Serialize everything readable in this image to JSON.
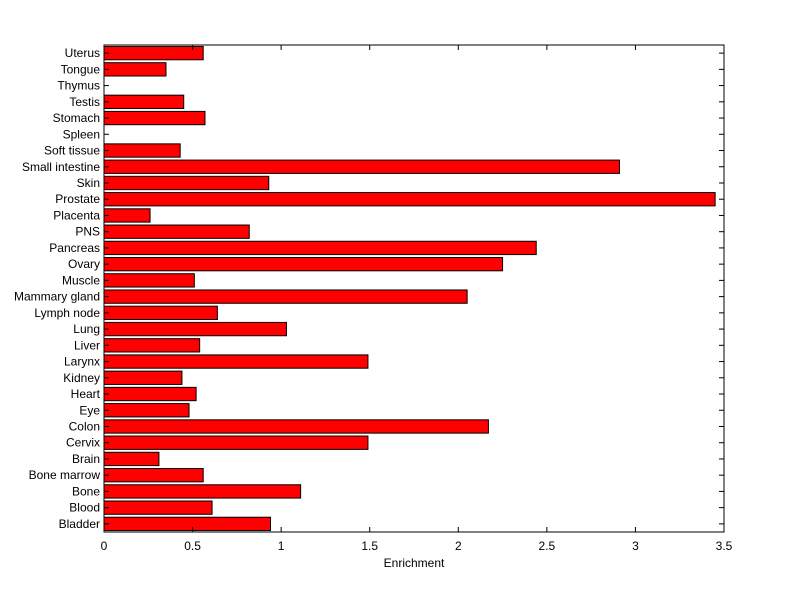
{
  "chart_data": {
    "type": "bar",
    "orientation": "horizontal",
    "xlabel": "Enrichment",
    "ylabel": "",
    "title": "",
    "xlim": [
      0,
      3.5
    ],
    "xticks": [
      0,
      0.5,
      1,
      1.5,
      2,
      2.5,
      3,
      3.5
    ],
    "xtick_labels": [
      "0",
      "0.5",
      "1",
      "1.5",
      "2",
      "2.5",
      "3",
      "3.5"
    ],
    "grid": false,
    "bar_color": "#ff0000",
    "bar_edge_color": "#000000",
    "categories": [
      "Bladder",
      "Blood",
      "Bone",
      "Bone marrow",
      "Brain",
      "Cervix",
      "Colon",
      "Eye",
      "Heart",
      "Kidney",
      "Larynx",
      "Liver",
      "Lung",
      "Lymph node",
      "Mammary gland",
      "Muscle",
      "Ovary",
      "Pancreas",
      "PNS",
      "Placenta",
      "Prostate",
      "Skin",
      "Small intestine",
      "Soft tissue",
      "Spleen",
      "Stomach",
      "Testis",
      "Thymus",
      "Tongue",
      "Uterus"
    ],
    "values": [
      0.94,
      0.61,
      1.11,
      0.56,
      0.31,
      1.49,
      2.17,
      0.48,
      0.52,
      0.44,
      1.49,
      0.54,
      1.03,
      0.64,
      2.05,
      0.51,
      2.25,
      2.44,
      0.82,
      0.26,
      3.45,
      0.93,
      2.91,
      0.43,
      0,
      0.57,
      0.45,
      0,
      0.35,
      0.56
    ]
  }
}
